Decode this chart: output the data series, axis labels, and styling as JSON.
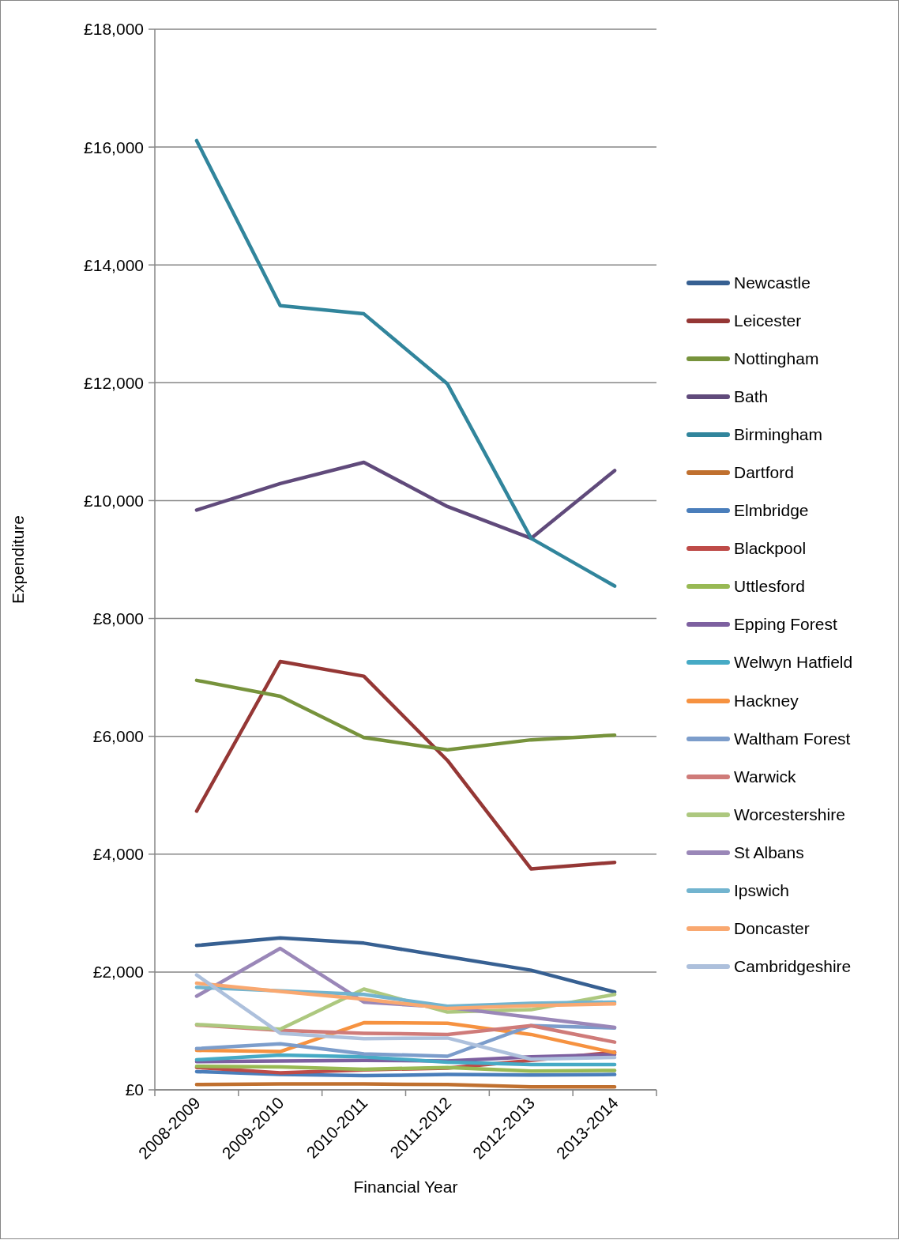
{
  "chart_data": {
    "type": "line",
    "xlabel": "Financial Year",
    "ylabel": "Expenditure",
    "categories": [
      "2008-2009",
      "2009-2010",
      "2010-2011",
      "2011-2012",
      "2012-2013",
      "2013-2014"
    ],
    "ylim": [
      0,
      18000
    ],
    "yticks": [
      {
        "value": 0,
        "label": "£0"
      },
      {
        "value": 2000,
        "label": "£2,000"
      },
      {
        "value": 4000,
        "label": "£4,000"
      },
      {
        "value": 6000,
        "label": "£6,000"
      },
      {
        "value": 8000,
        "label": "£8,000"
      },
      {
        "value": 10000,
        "label": "£10,000"
      },
      {
        "value": 12000,
        "label": "£12,000"
      },
      {
        "value": 14000,
        "label": "£14,000"
      },
      {
        "value": 16000,
        "label": "£16,000"
      },
      {
        "value": 18000,
        "label": "£18,000"
      }
    ],
    "grid": "y",
    "legend": "right",
    "line_style": "solid",
    "series": [
      {
        "name": "Newcastle",
        "color": "#376092",
        "values": [
          2450,
          2580,
          2490,
          2260,
          2030,
          1660
        ]
      },
      {
        "name": "Leicester",
        "color": "#953735",
        "values": [
          4730,
          7270,
          7020,
          5590,
          3750,
          3860
        ]
      },
      {
        "name": "Nottingham",
        "color": "#77933c",
        "values": [
          6950,
          6680,
          5980,
          5770,
          5940,
          6020
        ]
      },
      {
        "name": "Bath",
        "color": "#604a7b",
        "values": [
          9840,
          10290,
          10650,
          9900,
          9360,
          10510
        ]
      },
      {
        "name": "Birmingham",
        "color": "#31859c",
        "values": [
          16110,
          13310,
          13170,
          11980,
          9360,
          8550
        ]
      },
      {
        "name": "Dartford",
        "color": "#c0702f",
        "values": [
          90,
          100,
          100,
          90,
          50,
          50
        ]
      },
      {
        "name": "Elmbridge",
        "color": "#4a7ebb",
        "values": [
          310,
          260,
          240,
          260,
          250,
          260
        ]
      },
      {
        "name": "Blackpool",
        "color": "#be4b48",
        "values": [
          380,
          290,
          340,
          370,
          500,
          640
        ]
      },
      {
        "name": "Uttlesford",
        "color": "#98b954",
        "values": [
          400,
          390,
          350,
          380,
          320,
          330
        ]
      },
      {
        "name": "Epping Forest",
        "color": "#7d60a0",
        "values": [
          480,
          490,
          500,
          490,
          560,
          600
        ]
      },
      {
        "name": "Welwyn Hatfield",
        "color": "#46aac5",
        "values": [
          510,
          590,
          560,
          470,
          430,
          430
        ]
      },
      {
        "name": "Hackney",
        "color": "#f69240",
        "values": [
          670,
          650,
          1140,
          1130,
          940,
          630
        ]
      },
      {
        "name": "Waltham Forest",
        "color": "#7c9dcb",
        "values": [
          700,
          780,
          610,
          570,
          1090,
          1050
        ]
      },
      {
        "name": "Warwick",
        "color": "#cf7b79",
        "values": [
          1100,
          1010,
          960,
          940,
          1090,
          810
        ]
      },
      {
        "name": "Worcestershire",
        "color": "#adc87f",
        "values": [
          1110,
          1030,
          1710,
          1320,
          1360,
          1620
        ]
      },
      {
        "name": "St Albans",
        "color": "#9a87b8",
        "values": [
          1590,
          2400,
          1490,
          1400,
          1230,
          1060
        ]
      },
      {
        "name": "Ipswich",
        "color": "#72b4cf",
        "values": [
          1740,
          1680,
          1620,
          1420,
          1470,
          1490
        ]
      },
      {
        "name": "Doncaster",
        "color": "#f9a870",
        "values": [
          1810,
          1670,
          1540,
          1380,
          1430,
          1460
        ]
      },
      {
        "name": "Cambridgeshire",
        "color": "#adc0dc",
        "values": [
          1950,
          960,
          870,
          880,
          520,
          550
        ]
      }
    ]
  }
}
